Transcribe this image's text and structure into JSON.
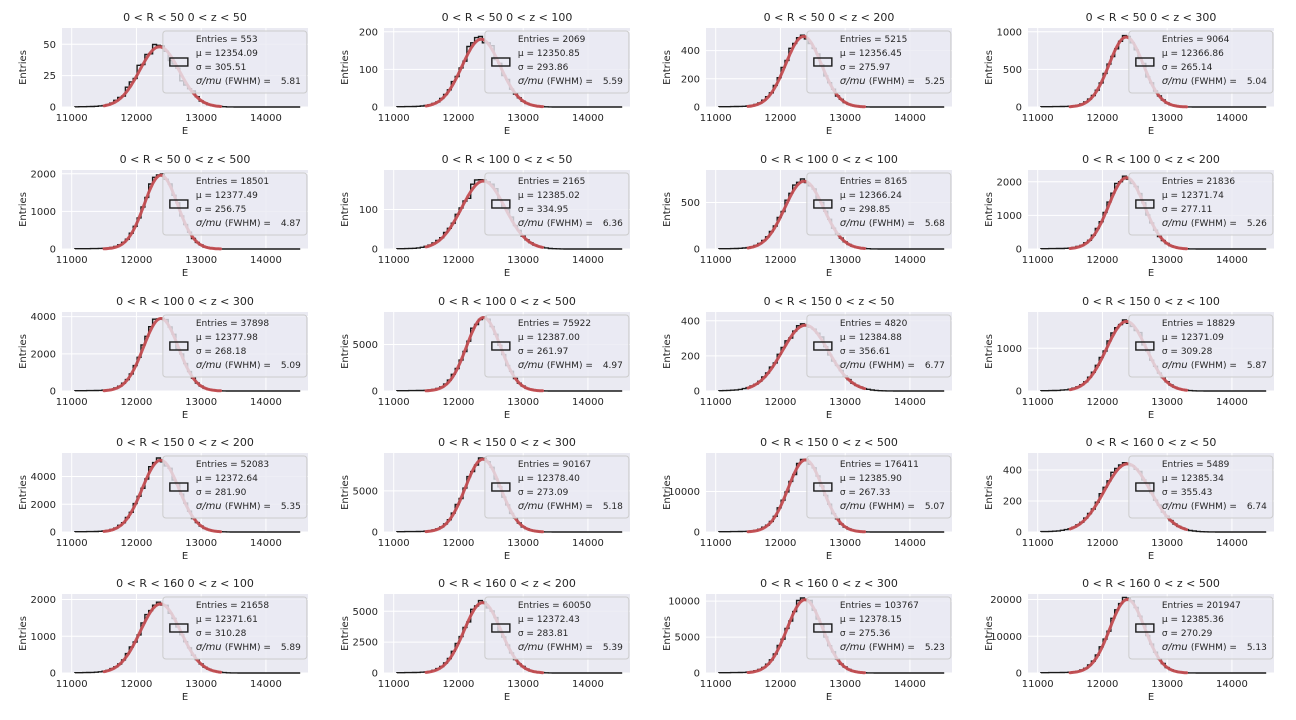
{
  "colors": {
    "panel_bg": "#eaeaf2",
    "grid": "#ffffff",
    "hist": "#1a1a1a",
    "fit": "#c44e52",
    "legend_bg": "#eaeaf2",
    "legend_edge": "#cccccc"
  },
  "legend_labels": {
    "entries": "Entries",
    "mu": "μ",
    "sigma": "σ",
    "resolution": "σ/mu",
    "fwhm": "(FWHM)"
  },
  "chart_data": [
    {
      "type": "bar",
      "title": "0 < R < 50 0 < z < 50",
      "xlabel": "E",
      "ylabel": "Entries",
      "xlim": [
        10850,
        14650
      ],
      "ylim": [
        0,
        63
      ],
      "xticks": [
        11000,
        12000,
        13000,
        14000
      ],
      "yticks": [
        0,
        25,
        50
      ],
      "stats": {
        "entries": "553",
        "mu": "12354.09",
        "sigma": "305.51",
        "res": "5.81"
      },
      "series": [
        {
          "mu": 12354.09,
          "sigma": 305.51,
          "peak": 48
        }
      ]
    },
    {
      "type": "bar",
      "title": "0 < R < 50 0 < z < 100",
      "xlabel": "E",
      "ylabel": "Entries",
      "xlim": [
        10850,
        14650
      ],
      "ylim": [
        0,
        210
      ],
      "xticks": [
        11000,
        12000,
        13000,
        14000
      ],
      "yticks": [
        0,
        100,
        200
      ],
      "stats": {
        "entries": "2069",
        "mu": "12350.85",
        "sigma": "293.86",
        "res": "5.59"
      },
      "series": [
        {
          "mu": 12350.85,
          "sigma": 293.86,
          "peak": 180
        }
      ]
    },
    {
      "type": "bar",
      "title": "0 < R < 50 0 < z < 200",
      "xlabel": "E",
      "ylabel": "Entries",
      "xlim": [
        10850,
        14650
      ],
      "ylim": [
        0,
        560
      ],
      "xticks": [
        11000,
        12000,
        13000,
        14000
      ],
      "yticks": [
        0,
        200,
        400
      ],
      "stats": {
        "entries": "5215",
        "mu": "12356.45",
        "sigma": "275.97",
        "res": "5.25"
      },
      "series": [
        {
          "mu": 12356.45,
          "sigma": 275.97,
          "peak": 500
        }
      ]
    },
    {
      "type": "bar",
      "title": "0 < R < 50 0 < z < 300",
      "xlabel": "E",
      "ylabel": "Entries",
      "xlim": [
        10850,
        14650
      ],
      "ylim": [
        0,
        1050
      ],
      "xticks": [
        11000,
        12000,
        13000,
        14000
      ],
      "yticks": [
        0,
        500,
        1000
      ],
      "stats": {
        "entries": "9064",
        "mu": "12366.86",
        "sigma": "265.14",
        "res": "5.04"
      },
      "series": [
        {
          "mu": 12366.86,
          "sigma": 265.14,
          "peak": 930
        }
      ]
    },
    {
      "type": "bar",
      "title": "0 < R < 50 0 < z < 500",
      "xlabel": "E",
      "ylabel": "Entries",
      "xlim": [
        10850,
        14650
      ],
      "ylim": [
        0,
        2100
      ],
      "xticks": [
        11000,
        12000,
        13000,
        14000
      ],
      "yticks": [
        0,
        1000,
        2000
      ],
      "stats": {
        "entries": "18501",
        "mu": "12377.49",
        "sigma": "256.75",
        "res": "4.87"
      },
      "series": [
        {
          "mu": 12377.49,
          "sigma": 256.75,
          "peak": 1960
        }
      ]
    },
    {
      "type": "bar",
      "title": "0 < R < 100 0 < z < 50",
      "xlabel": "E",
      "ylabel": "Entries",
      "xlim": [
        10850,
        14650
      ],
      "ylim": [
        0,
        200
      ],
      "xticks": [
        11000,
        12000,
        13000,
        14000
      ],
      "yticks": [
        0,
        100
      ],
      "stats": {
        "entries": "2165",
        "mu": "12385.02",
        "sigma": "334.95",
        "res": "6.36"
      },
      "series": [
        {
          "mu": 12385.02,
          "sigma": 334.95,
          "peak": 172
        }
      ]
    },
    {
      "type": "bar",
      "title": "0 < R < 100 0 < z < 100",
      "xlabel": "E",
      "ylabel": "Entries",
      "xlim": [
        10850,
        14650
      ],
      "ylim": [
        0,
        850
      ],
      "xticks": [
        11000,
        12000,
        13000,
        14000
      ],
      "yticks": [
        0,
        500
      ],
      "stats": {
        "entries": "8165",
        "mu": "12366.24",
        "sigma": "298.85",
        "res": "5.68"
      },
      "series": [
        {
          "mu": 12366.24,
          "sigma": 298.85,
          "peak": 730
        }
      ]
    },
    {
      "type": "bar",
      "title": "0 < R < 100 0 < z < 200",
      "xlabel": "E",
      "ylabel": "Entries",
      "xlim": [
        10850,
        14650
      ],
      "ylim": [
        0,
        2350
      ],
      "xticks": [
        11000,
        12000,
        13000,
        14000
      ],
      "yticks": [
        0,
        1000,
        2000
      ],
      "stats": {
        "entries": "21836",
        "mu": "12371.74",
        "sigma": "277.11",
        "res": "5.26"
      },
      "series": [
        {
          "mu": 12371.74,
          "sigma": 277.11,
          "peak": 2120
        }
      ]
    },
    {
      "type": "bar",
      "title": "0 < R < 100 0 < z < 300",
      "xlabel": "E",
      "ylabel": "Entries",
      "xlim": [
        10850,
        14650
      ],
      "ylim": [
        0,
        4250
      ],
      "xticks": [
        11000,
        12000,
        13000,
        14000
      ],
      "yticks": [
        0,
        2000,
        4000
      ],
      "stats": {
        "entries": "37898",
        "mu": "12377.98",
        "sigma": "268.18",
        "res": "5.09"
      },
      "series": [
        {
          "mu": 12377.98,
          "sigma": 268.18,
          "peak": 3900
        }
      ]
    },
    {
      "type": "bar",
      "title": "0 < R < 100 0 < z < 500",
      "xlabel": "E",
      "ylabel": "Entries",
      "xlim": [
        10850,
        14650
      ],
      "ylim": [
        0,
        8500
      ],
      "xticks": [
        11000,
        12000,
        13000,
        14000
      ],
      "yticks": [
        0,
        5000
      ],
      "stats": {
        "entries": "75922",
        "mu": "12387.00",
        "sigma": "261.97",
        "res": "4.97"
      },
      "series": [
        {
          "mu": 12387.0,
          "sigma": 261.97,
          "peak": 7900
        }
      ]
    },
    {
      "type": "bar",
      "title": "0 < R < 150 0 < z < 50",
      "xlabel": "E",
      "ylabel": "Entries",
      "xlim": [
        10850,
        14650
      ],
      "ylim": [
        0,
        450
      ],
      "xticks": [
        11000,
        12000,
        13000,
        14000
      ],
      "yticks": [
        0,
        200,
        400
      ],
      "stats": {
        "entries": "4820",
        "mu": "12384.88",
        "sigma": "356.61",
        "res": "6.77"
      },
      "series": [
        {
          "mu": 12384.88,
          "sigma": 356.61,
          "peak": 375
        }
      ]
    },
    {
      "type": "bar",
      "title": "0 < R < 150 0 < z < 100",
      "xlabel": "E",
      "ylabel": "Entries",
      "xlim": [
        10850,
        14650
      ],
      "ylim": [
        0,
        1850
      ],
      "xticks": [
        11000,
        12000,
        13000,
        14000
      ],
      "yticks": [
        0,
        1000
      ],
      "stats": {
        "entries": "18829",
        "mu": "12371.09",
        "sigma": "309.28",
        "res": "5.87"
      },
      "series": [
        {
          "mu": 12371.09,
          "sigma": 309.28,
          "peak": 1630
        }
      ]
    },
    {
      "type": "bar",
      "title": "0 < R < 150 0 < z < 200",
      "xlabel": "E",
      "ylabel": "Entries",
      "xlim": [
        10850,
        14650
      ],
      "ylim": [
        0,
        5700
      ],
      "xticks": [
        11000,
        12000,
        13000,
        14000
      ],
      "yticks": [
        0,
        2000,
        4000
      ],
      "stats": {
        "entries": "52083",
        "mu": "12372.64",
        "sigma": "281.90",
        "res": "5.35"
      },
      "series": [
        {
          "mu": 12372.64,
          "sigma": 281.9,
          "peak": 5180
        }
      ]
    },
    {
      "type": "bar",
      "title": "0 < R < 150 0 < z < 300",
      "xlabel": "E",
      "ylabel": "Entries",
      "xlim": [
        10850,
        14650
      ],
      "ylim": [
        0,
        9600
      ],
      "xticks": [
        11000,
        12000,
        13000,
        14000
      ],
      "yticks": [
        0,
        5000
      ],
      "stats": {
        "entries": "90167",
        "mu": "12378.40",
        "sigma": "273.09",
        "res": "5.18"
      },
      "series": [
        {
          "mu": 12378.4,
          "sigma": 273.09,
          "peak": 8850
        }
      ]
    },
    {
      "type": "bar",
      "title": "0 < R < 150 0 < z < 500",
      "xlabel": "E",
      "ylabel": "Entries",
      "xlim": [
        10850,
        14650
      ],
      "ylim": [
        0,
        19500
      ],
      "xticks": [
        11000,
        12000,
        13000,
        14000
      ],
      "yticks": [
        0,
        10000
      ],
      "stats": {
        "entries": "176411",
        "mu": "12385.90",
        "sigma": "267.33",
        "res": "5.07"
      },
      "series": [
        {
          "mu": 12385.9,
          "sigma": 267.33,
          "peak": 17800
        }
      ]
    },
    {
      "type": "bar",
      "title": "0 < R < 160 0 < z < 50",
      "xlabel": "E",
      "ylabel": "Entries",
      "xlim": [
        10850,
        14650
      ],
      "ylim": [
        0,
        510
      ],
      "xticks": [
        11000,
        12000,
        13000,
        14000
      ],
      "yticks": [
        0,
        200,
        400
      ],
      "stats": {
        "entries": "5489",
        "mu": "12385.34",
        "sigma": "355.43",
        "res": "6.74"
      },
      "series": [
        {
          "mu": 12385.34,
          "sigma": 355.43,
          "peak": 440
        }
      ]
    },
    {
      "type": "bar",
      "title": "0 < R < 160 0 < z < 100",
      "xlabel": "E",
      "ylabel": "Entries",
      "xlim": [
        10850,
        14650
      ],
      "ylim": [
        0,
        2150
      ],
      "xticks": [
        11000,
        12000,
        13000,
        14000
      ],
      "yticks": [
        0,
        1000,
        2000
      ],
      "stats": {
        "entries": "21658",
        "mu": "12371.61",
        "sigma": "310.28",
        "res": "5.89"
      },
      "series": [
        {
          "mu": 12371.61,
          "sigma": 310.28,
          "peak": 1880
        }
      ]
    },
    {
      "type": "bar",
      "title": "0 < R < 160 0 < z < 200",
      "xlabel": "E",
      "ylabel": "Entries",
      "xlim": [
        10850,
        14650
      ],
      "ylim": [
        0,
        6400
      ],
      "xticks": [
        11000,
        12000,
        13000,
        14000
      ],
      "yticks": [
        0,
        2500,
        5000
      ],
      "stats": {
        "entries": "60050",
        "mu": "12372.43",
        "sigma": "283.81",
        "res": "5.39"
      },
      "series": [
        {
          "mu": 12372.43,
          "sigma": 283.81,
          "peak": 5700
        }
      ]
    },
    {
      "type": "bar",
      "title": "0 < R < 160 0 < z < 300",
      "xlabel": "E",
      "ylabel": "Entries",
      "xlim": [
        10850,
        14650
      ],
      "ylim": [
        0,
        11000
      ],
      "xticks": [
        11000,
        12000,
        13000,
        14000
      ],
      "yticks": [
        0,
        5000,
        10000
      ],
      "stats": {
        "entries": "103767",
        "mu": "12378.15",
        "sigma": "275.36",
        "res": "5.23"
      },
      "series": [
        {
          "mu": 12378.15,
          "sigma": 275.36,
          "peak": 10200
        }
      ]
    },
    {
      "type": "bar",
      "title": "0 < R < 160 0 < z < 500",
      "xlabel": "E",
      "ylabel": "Entries",
      "xlim": [
        10850,
        14650
      ],
      "ylim": [
        0,
        21500
      ],
      "xticks": [
        11000,
        12000,
        13000,
        14000
      ],
      "yticks": [
        0,
        10000,
        20000
      ],
      "stats": {
        "entries": "201947",
        "mu": "12385.36",
        "sigma": "270.29",
        "res": "5.13"
      },
      "series": [
        {
          "mu": 12385.36,
          "sigma": 270.29,
          "peak": 20000
        }
      ]
    }
  ]
}
